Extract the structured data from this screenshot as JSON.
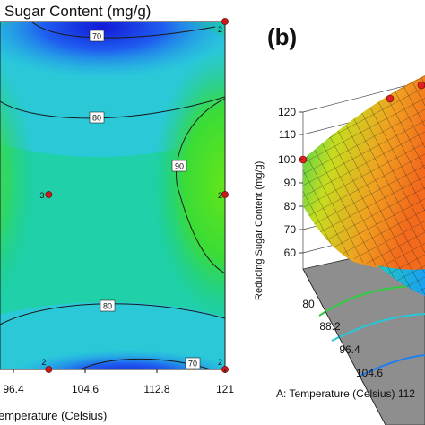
{
  "chart_data": [
    {
      "type": "heatmap",
      "title": "Sugar  Content (mg/g)",
      "xlabel": "emperature  (Celsius)",
      "x_ticks": [
        "96.4",
        "104.6",
        "112.8",
        "121"
      ],
      "contour_levels": [
        {
          "label": "70"
        },
        {
          "label": "80"
        },
        {
          "label": "90"
        },
        {
          "label": "80"
        },
        {
          "label": "70"
        }
      ],
      "design_points": [
        {
          "label": "2",
          "x": 121,
          "y": "top"
        },
        {
          "label": "3",
          "x": 100.5,
          "y": "center"
        },
        {
          "label": "2",
          "x": 121,
          "y": "center"
        },
        {
          "label": "2",
          "x": 100.5,
          "y": "bottom"
        },
        {
          "label": "2",
          "x": 121,
          "y": "bottom"
        }
      ]
    },
    {
      "type": "surface",
      "panel_label": "(b)",
      "zlabel": "Reducing Sugar  Content (mg/g)",
      "z_ticks": [
        "120",
        "110",
        "100",
        "90",
        "80",
        "70",
        "60"
      ],
      "x_ticks": [
        "80",
        "88.2",
        "96.4",
        "104.6"
      ],
      "xlabel": "A: Temperature  (Celsius) 112"
    }
  ]
}
